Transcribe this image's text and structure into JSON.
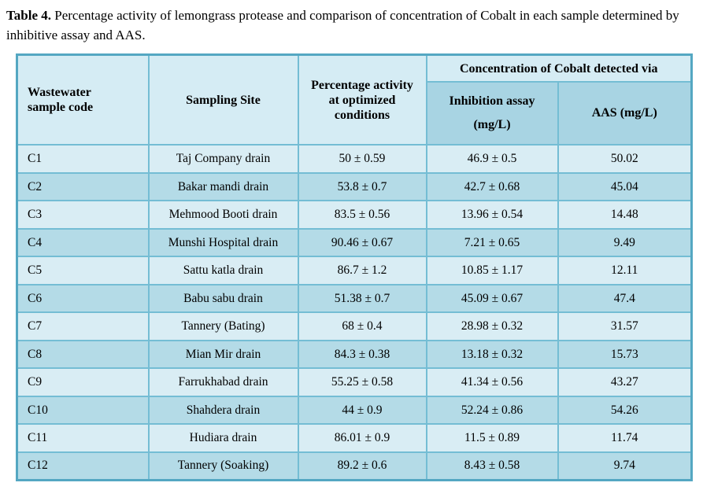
{
  "caption": {
    "label": "Table 4.",
    "text": " Percentage activity of lemongrass protease and comparison of concentration of Cobalt in each sample determined by inhibitive assay and AAS."
  },
  "table": {
    "headers": {
      "sample_code": "Wastewater\nsample code",
      "sampling_site": "Sampling Site",
      "activity": "Percentage activity\nat optimized\nconditions",
      "cobalt_group": "Concentration of Cobalt detected via",
      "inhibition": "Inhibition assay\n(mg/L)",
      "aas": "AAS (mg/L)"
    },
    "rows": [
      {
        "code": "C1",
        "site": "Taj Company drain",
        "activity": "50 ± 0.59",
        "inhibition": "46.9 ± 0.5",
        "aas": "50.02"
      },
      {
        "code": "C2",
        "site": "Bakar mandi drain",
        "activity": "53.8 ± 0.7",
        "inhibition": "42.7 ± 0.68",
        "aas": "45.04"
      },
      {
        "code": "C3",
        "site": "Mehmood Booti drain",
        "activity": "83.5 ± 0.56",
        "inhibition": "13.96 ± 0.54",
        "aas": "14.48"
      },
      {
        "code": "C4",
        "site": "Munshi Hospital drain",
        "activity": "90.46 ± 0.67",
        "inhibition": "7.21 ± 0.65",
        "aas": "9.49"
      },
      {
        "code": "C5",
        "site": "Sattu katla drain",
        "activity": "86.7 ± 1.2",
        "inhibition": "10.85 ± 1.17",
        "aas": "12.11"
      },
      {
        "code": "C6",
        "site": "Babu sabu drain",
        "activity": "51.38 ± 0.7",
        "inhibition": "45.09 ± 0.67",
        "aas": "47.4"
      },
      {
        "code": "C7",
        "site": "Tannery (Bating)",
        "activity": "68 ± 0.4",
        "inhibition": "28.98 ± 0.32",
        "aas": "31.57"
      },
      {
        "code": "C8",
        "site": "Mian Mir drain",
        "activity": "84.3 ± 0.38",
        "inhibition": "13.18 ± 0.32",
        "aas": "15.73"
      },
      {
        "code": "C9",
        "site": "Farrukhabad drain",
        "activity": "55.25 ± 0.58",
        "inhibition": "41.34 ± 0.56",
        "aas": "43.27"
      },
      {
        "code": "C10",
        "site": "Shahdera drain",
        "activity": "44 ± 0.9",
        "inhibition": "52.24 ± 0.86",
        "aas": "54.26"
      },
      {
        "code": "C11",
        "site": "Hudiara drain",
        "activity": "86.01 ± 0.9",
        "inhibition": "11.5 ± 0.89",
        "aas": "11.74"
      },
      {
        "code": "C12",
        "site": "Tannery (Soaking)",
        "activity": "89.2 ± 0.6",
        "inhibition": "8.43 ± 0.58",
        "aas": "9.74"
      }
    ]
  },
  "colors": {
    "outer_border": "#54a7c2",
    "inner_border": "#74bdd4",
    "row_light": "#d9edf4",
    "row_dark": "#b4dbe7",
    "header_light": "#d5ecf4",
    "subheader_dark": "#a8d4e3"
  }
}
